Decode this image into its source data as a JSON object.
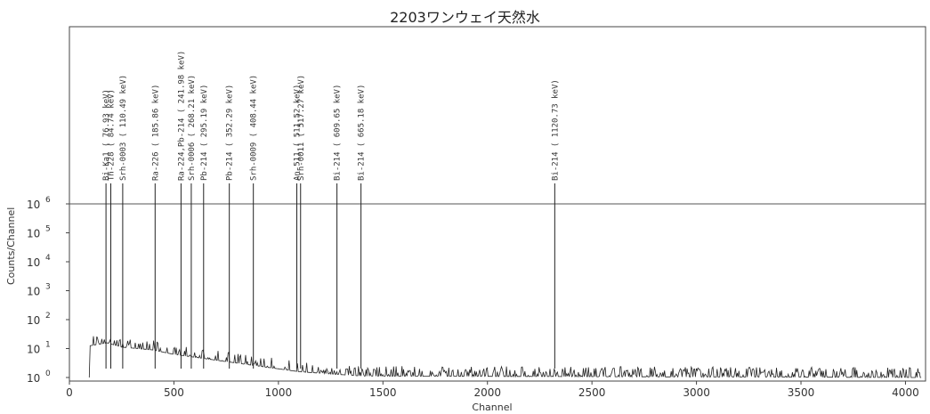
{
  "chart_data": {
    "type": "line",
    "title": "2203ワンウェイ天然水",
    "xlabel": "Channel",
    "ylabel": "Counts/Channel",
    "xlim": [
      0,
      4096
    ],
    "ylim_exp": [
      0,
      7
    ],
    "y_scale": "log",
    "x_ticks": [
      "0",
      "500",
      "1000",
      "1500",
      "2000",
      "2500",
      "3000",
      "3500",
      "4000"
    ],
    "y_ticks": [
      {
        "base": "10",
        "exp": "0"
      },
      {
        "base": "10",
        "exp": "1"
      },
      {
        "base": "10",
        "exp": "2"
      },
      {
        "base": "10",
        "exp": "3"
      },
      {
        "base": "10",
        "exp": "4"
      },
      {
        "base": "10",
        "exp": "5"
      },
      {
        "base": "10",
        "exp": "6"
      }
    ],
    "reference_line_y": 1000000,
    "peaks": [
      {
        "channel": 175,
        "label": "Bi-Ka1 (   76.93 keV)"
      },
      {
        "channel": 198,
        "label": "Th-228 (   84.74 keV)"
      },
      {
        "channel": 255,
        "label": "Srh-0003 ( 110.49 keV)"
      },
      {
        "channel": 410,
        "label": "Ra-226 ( 185.86 keV)"
      },
      {
        "channel": 534,
        "label": "Ra-224,Pb-214 ( 241.98 keV)"
      },
      {
        "channel": 583,
        "label": "Srh-0006 ( 268.21 keV)"
      },
      {
        "channel": 642,
        "label": "Pb-214 ( 295.19 keV)"
      },
      {
        "channel": 765,
        "label": "Pb-214 ( 352.29 keV)"
      },
      {
        "channel": 880,
        "label": "Srh-0009 ( 408.44 keV)"
      },
      {
        "channel": 1088,
        "label": "An-511 ( 511.52 keV)"
      },
      {
        "channel": 1106,
        "label": "Srh-0011 ( 517.27 keV)"
      },
      {
        "channel": 1280,
        "label": "Bi-214 ( 609.65 keV)"
      },
      {
        "channel": 1395,
        "label": "Bi-214 ( 665.18 keV)"
      },
      {
        "channel": 2322,
        "label": "Bi-214 ( 1120.73 keV)"
      }
    ],
    "spectrum_profile": [
      [
        95,
        0.0
      ],
      [
        100,
        1.1
      ],
      [
        180,
        1.2
      ],
      [
        250,
        1.05
      ],
      [
        400,
        0.95
      ],
      [
        500,
        0.8
      ],
      [
        700,
        0.6
      ],
      [
        900,
        0.4
      ],
      [
        1100,
        0.2
      ],
      [
        1400,
        0.05
      ],
      [
        4096,
        0.0
      ]
    ],
    "grid": false,
    "legend": "none"
  }
}
